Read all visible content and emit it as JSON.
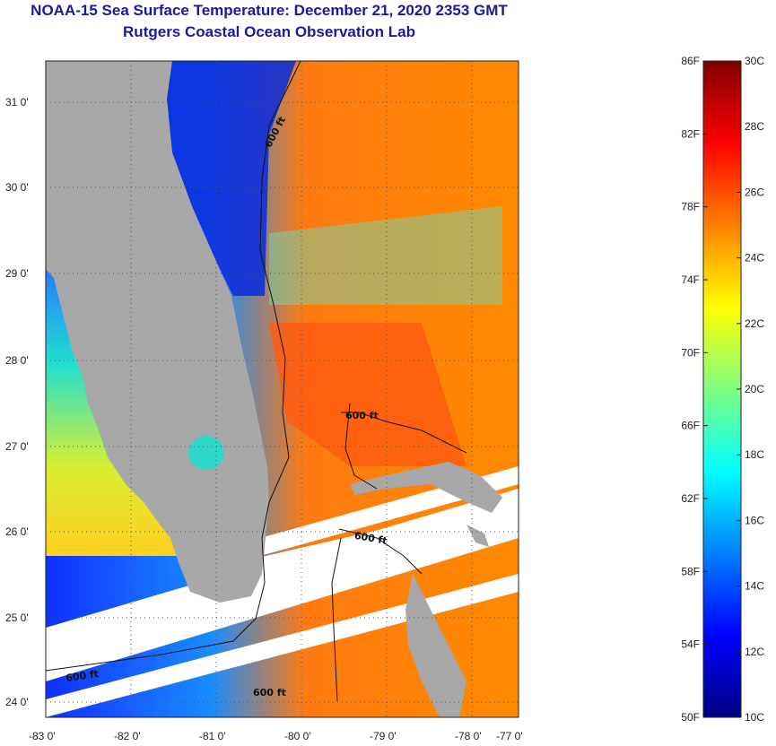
{
  "header": {
    "title": "NOAA-15 Sea Surface Temperature:  December 21, 2020 2353 GMT",
    "subtitle": "Rutgers Coastal Ocean Observation Lab"
  },
  "map": {
    "lon_ticks": [
      "-83 0'",
      "-82 0'",
      "-81 0'",
      "-80 0'",
      "-79 0'",
      "-78 0'",
      "-77 0'"
    ],
    "lat_ticks": [
      "24 0'",
      "25 0'",
      "26 0'",
      "27 0'",
      "28 0'",
      "29 0'",
      "30 0'",
      "31 0'"
    ],
    "contour_labels": [
      "600 ft",
      "600 ft",
      "600 ft",
      "600 ft",
      "600 ft"
    ],
    "colors": {
      "land": "#a8a8a8",
      "cloud": "#ffffff",
      "grid": "#555555"
    }
  },
  "colorbar": {
    "fahrenheit_labels": [
      "86F",
      "82F",
      "78F",
      "74F",
      "70F",
      "66F",
      "62F",
      "58F",
      "54F",
      "50F"
    ],
    "celsius_labels": [
      "30C",
      "28C",
      "26C",
      "24C",
      "22C",
      "20C",
      "18C",
      "16C",
      "14C",
      "12C",
      "10C"
    ],
    "stops": [
      "#00007f",
      "#0000ff",
      "#0080ff",
      "#00ffff",
      "#80ff80",
      "#ffff00",
      "#ff8000",
      "#ff0000",
      "#7f0000"
    ]
  }
}
